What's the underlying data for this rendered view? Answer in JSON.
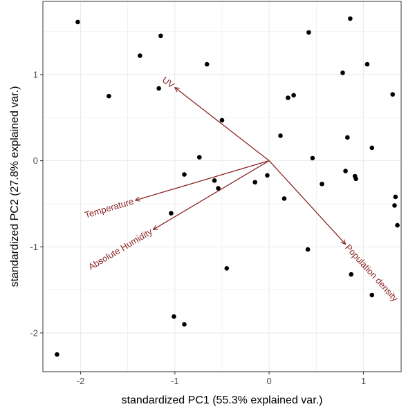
{
  "chart_data": {
    "type": "scatter",
    "xlabel": "standardized PC1 (55.3% explained var.)",
    "ylabel": "standardized PC2 (27.8% explained var.)",
    "xlim": [
      -2.4,
      1.4
    ],
    "ylim": [
      -2.45,
      1.85
    ],
    "x_ticks": [
      -2,
      -1,
      0,
      1
    ],
    "y_ticks": [
      -2,
      -1,
      0,
      1
    ],
    "x_tick_labels": [
      "-2",
      "-1",
      "0",
      "1"
    ],
    "y_tick_labels": [
      "-2",
      "-1",
      "0",
      "1"
    ],
    "grid": true,
    "point_color": "#000000",
    "arrow_color": "#8b2323",
    "points": [
      {
        "x": -2.03,
        "y": 1.61
      },
      {
        "x": -2.25,
        "y": -2.25
      },
      {
        "x": -1.7,
        "y": 0.75
      },
      {
        "x": -1.37,
        "y": 1.22
      },
      {
        "x": -1.15,
        "y": 1.45
      },
      {
        "x": -1.17,
        "y": 0.84
      },
      {
        "x": -0.66,
        "y": 1.12
      },
      {
        "x": -0.5,
        "y": 0.47
      },
      {
        "x": -0.74,
        "y": 0.04
      },
      {
        "x": -0.9,
        "y": -0.16
      },
      {
        "x": -0.58,
        "y": -0.23
      },
      {
        "x": -0.54,
        "y": -0.32
      },
      {
        "x": -1.04,
        "y": -0.61
      },
      {
        "x": -0.45,
        "y": -1.25
      },
      {
        "x": -1.01,
        "y": -1.81
      },
      {
        "x": -0.9,
        "y": -1.9
      },
      {
        "x": -0.15,
        "y": -0.25
      },
      {
        "x": -0.02,
        "y": -0.17
      },
      {
        "x": 0.12,
        "y": 0.29
      },
      {
        "x": 0.2,
        "y": 0.73
      },
      {
        "x": 0.26,
        "y": 0.76
      },
      {
        "x": 0.42,
        "y": 1.49
      },
      {
        "x": 0.46,
        "y": 0.03
      },
      {
        "x": 0.56,
        "y": -0.27
      },
      {
        "x": 0.16,
        "y": -0.44
      },
      {
        "x": 0.41,
        "y": -1.03
      },
      {
        "x": 0.78,
        "y": 1.02
      },
      {
        "x": 0.86,
        "y": 1.65
      },
      {
        "x": 0.83,
        "y": 0.27
      },
      {
        "x": 0.81,
        "y": -0.12
      },
      {
        "x": 0.91,
        "y": -0.18
      },
      {
        "x": 0.92,
        "y": -0.21
      },
      {
        "x": 0.87,
        "y": -1.32
      },
      {
        "x": 1.04,
        "y": 1.12
      },
      {
        "x": 1.09,
        "y": 0.15
      },
      {
        "x": 1.09,
        "y": -1.56
      },
      {
        "x": 1.31,
        "y": 0.77
      },
      {
        "x": 1.34,
        "y": -0.42
      },
      {
        "x": 1.33,
        "y": -0.52
      },
      {
        "x": 1.36,
        "y": -0.75
      }
    ],
    "loadings": [
      {
        "name": "UV",
        "x": -1.0,
        "y": 0.85
      },
      {
        "name": "Temperature",
        "x": -1.42,
        "y": -0.46
      },
      {
        "name": "Absolute Humidity",
        "x": -1.23,
        "y": -0.8
      },
      {
        "name": "Population density",
        "x": 0.81,
        "y": -0.97
      }
    ]
  }
}
